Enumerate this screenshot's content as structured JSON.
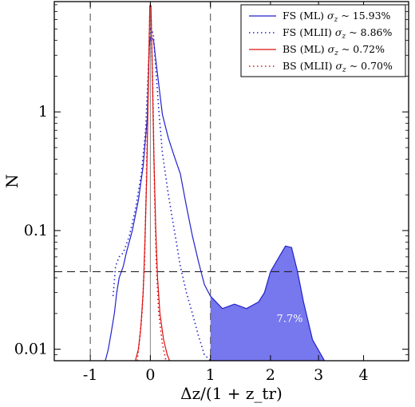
{
  "chart_data": {
    "type": "line",
    "title": "",
    "xlabel": "Δz/(1 + z_tr)",
    "ylabel": "N",
    "yscale": "log",
    "ylim": [
      0.008,
      8.5
    ],
    "xlim": [
      -1.6,
      4.3
    ],
    "x_ticks": [
      {
        "label": "-1",
        "pos": -1
      },
      {
        "label": "0",
        "pos": 0
      },
      {
        "label": "1",
        "pos": 1
      },
      {
        "label": "2",
        "pos": 2
      },
      {
        "label": "3",
        "pos": 2.8
      },
      {
        "label": "4",
        "pos": 3.55
      }
    ],
    "y_ticks": [
      {
        "label": "0.01",
        "value": 0.01
      },
      {
        "label": "0.1",
        "value": 0.1
      },
      {
        "label": "1",
        "value": 1
      }
    ],
    "legend_position": "top-right",
    "grid": false,
    "reference_lines": {
      "vertical_dashed_at": [
        -1,
        1
      ],
      "vertical_solid_at": [
        0
      ],
      "horizontal_dashed_at": 0.045
    },
    "shaded_region": {
      "series": "FS (ML)",
      "from_x": 1,
      "color": "#7777ee",
      "annotation": "7.7%",
      "annotation_at": {
        "x": 2.1,
        "y": 0.017
      }
    },
    "series": [
      {
        "name": "FS (ML) σz ~ 15.93%",
        "label_main": "FS (ML) ",
        "label_sym": "σ",
        "label_sub": "z",
        "label_tail": " ~ 15.93%",
        "color": "#2222cc",
        "style": "solid",
        "points": [
          [
            -0.75,
            0.008
          ],
          [
            -0.7,
            0.01
          ],
          [
            -0.65,
            0.014
          ],
          [
            -0.6,
            0.02
          ],
          [
            -0.56,
            0.03
          ],
          [
            -0.52,
            0.04
          ],
          [
            -0.45,
            0.05
          ],
          [
            -0.4,
            0.065
          ],
          [
            -0.3,
            0.1
          ],
          [
            -0.2,
            0.18
          ],
          [
            -0.12,
            0.35
          ],
          [
            -0.05,
            0.9
          ],
          [
            -0.02,
            3.5
          ],
          [
            0.0,
            4.2
          ],
          [
            0.05,
            4.1
          ],
          [
            0.1,
            2.5
          ],
          [
            0.2,
            0.95
          ],
          [
            0.3,
            0.6
          ],
          [
            0.4,
            0.42
          ],
          [
            0.5,
            0.3
          ],
          [
            0.6,
            0.16
          ],
          [
            0.7,
            0.09
          ],
          [
            0.8,
            0.055
          ],
          [
            0.9,
            0.035
          ],
          [
            1.0,
            0.028
          ],
          [
            1.2,
            0.022
          ],
          [
            1.4,
            0.024
          ],
          [
            1.6,
            0.022
          ],
          [
            1.8,
            0.025
          ],
          [
            1.9,
            0.03
          ],
          [
            2.0,
            0.045
          ],
          [
            2.1,
            0.055
          ],
          [
            2.25,
            0.074
          ],
          [
            2.35,
            0.072
          ],
          [
            2.45,
            0.045
          ],
          [
            2.55,
            0.025
          ],
          [
            2.7,
            0.012
          ],
          [
            2.9,
            0.008
          ]
        ]
      },
      {
        "name": "FS (MLII) σz ~ 8.86%",
        "label_main": "FS (MLII) ",
        "label_sym": "σ",
        "label_sub": "z",
        "label_tail": " ~ 8.86%",
        "color": "#2222cc",
        "style": "dotted",
        "points": [
          [
            -0.62,
            0.028
          ],
          [
            -0.58,
            0.05
          ],
          [
            -0.52,
            0.06
          ],
          [
            -0.45,
            0.065
          ],
          [
            -0.35,
            0.09
          ],
          [
            -0.25,
            0.15
          ],
          [
            -0.15,
            0.3
          ],
          [
            -0.08,
            0.7
          ],
          [
            -0.03,
            2.5
          ],
          [
            0.0,
            5.2
          ],
          [
            0.05,
            4.5
          ],
          [
            0.1,
            2.0
          ],
          [
            0.15,
            0.9
          ],
          [
            0.2,
            0.45
          ],
          [
            0.3,
            0.2
          ],
          [
            0.4,
            0.1
          ],
          [
            0.5,
            0.05
          ],
          [
            0.6,
            0.03
          ],
          [
            0.7,
            0.02
          ],
          [
            0.8,
            0.013
          ],
          [
            0.9,
            0.009
          ],
          [
            1.0,
            0.008
          ]
        ]
      },
      {
        "name": "BS (ML) σz ~ 0.72%",
        "label_main": "BS (ML) ",
        "label_sym": "σ",
        "label_sub": "z",
        "label_tail": " ~ 0.72%",
        "color": "#dd1111",
        "style": "solid",
        "points": [
          [
            -0.25,
            0.008
          ],
          [
            -0.2,
            0.01
          ],
          [
            -0.16,
            0.015
          ],
          [
            -0.12,
            0.03
          ],
          [
            -0.09,
            0.08
          ],
          [
            -0.06,
            0.3
          ],
          [
            -0.03,
            2.0
          ],
          [
            -0.01,
            7.8
          ],
          [
            0.0,
            8.0
          ],
          [
            0.01,
            7.8
          ],
          [
            0.03,
            2.5
          ],
          [
            0.06,
            0.4
          ],
          [
            0.09,
            0.1
          ],
          [
            0.12,
            0.04
          ],
          [
            0.16,
            0.02
          ],
          [
            0.22,
            0.012
          ],
          [
            0.28,
            0.009
          ],
          [
            0.32,
            0.008
          ]
        ]
      },
      {
        "name": "BS (MLII) σz ~ 0.70%",
        "label_main": "BS (MLII) ",
        "label_sym": "σ",
        "label_sub": "z",
        "label_tail": " ~ 0.70%",
        "color": "#dd1111",
        "style": "dotted",
        "points": [
          [
            -0.22,
            0.008
          ],
          [
            -0.18,
            0.012
          ],
          [
            -0.14,
            0.02
          ],
          [
            -0.1,
            0.05
          ],
          [
            -0.07,
            0.2
          ],
          [
            -0.04,
            1.5
          ],
          [
            -0.01,
            6.5
          ],
          [
            0.01,
            6.5
          ],
          [
            0.04,
            1.6
          ],
          [
            0.07,
            0.2
          ],
          [
            0.1,
            0.05
          ],
          [
            0.14,
            0.02
          ],
          [
            0.2,
            0.011
          ],
          [
            0.26,
            0.008
          ]
        ]
      }
    ]
  }
}
